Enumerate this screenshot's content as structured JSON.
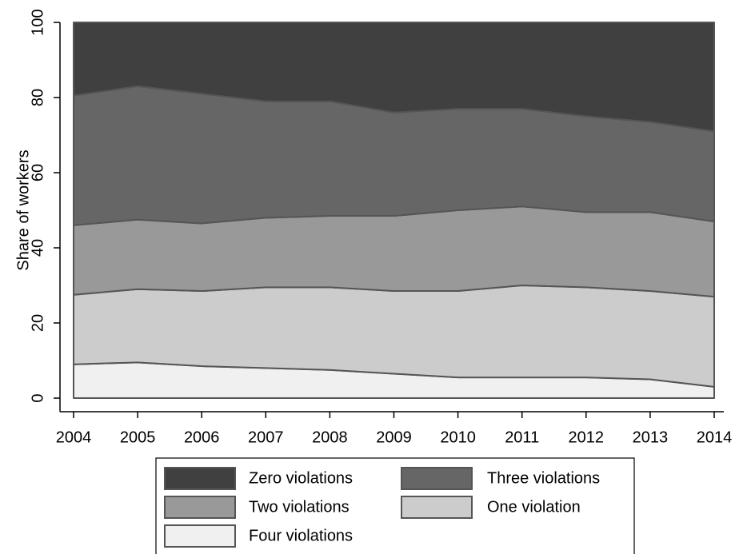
{
  "chart_data": {
    "type": "stacked_area",
    "y_label": "Share of workers",
    "x": [
      2004,
      2005,
      2006,
      2007,
      2008,
      2009,
      2010,
      2011,
      2012,
      2013,
      2014
    ],
    "xlim": [
      2004,
      2014
    ],
    "xticks": [
      2004,
      2005,
      2006,
      2007,
      2008,
      2009,
      2010,
      2011,
      2012,
      2013,
      2014
    ],
    "ylim": [
      0,
      100
    ],
    "yticks": [
      0,
      20,
      40,
      60,
      80,
      100
    ],
    "series": [
      {
        "name": "Four violations",
        "color": "#f0f0f0",
        "values": [
          9,
          9.5,
          8.5,
          8,
          7.5,
          6.5,
          5.5,
          5.5,
          5.5,
          5,
          3
        ]
      },
      {
        "name": "One violation",
        "color": "#cccccc",
        "values": [
          18.5,
          19.5,
          20,
          21.5,
          22,
          22,
          23,
          24.5,
          24,
          23.5,
          24
        ]
      },
      {
        "name": "Two violations",
        "color": "#999999",
        "values": [
          18.5,
          18.5,
          18,
          18.5,
          19,
          20,
          21.5,
          21,
          20,
          21,
          20
        ]
      },
      {
        "name": "Three violations",
        "color": "#666666",
        "values": [
          34.5,
          35.5,
          34.5,
          31,
          30.5,
          27.5,
          27,
          26,
          25.5,
          24,
          24
        ]
      },
      {
        "name": "Zero violations",
        "color": "#404040",
        "values": [
          19.5,
          17,
          19,
          21,
          21,
          24,
          23,
          23,
          25,
          26.5,
          29
        ]
      }
    ]
  }
}
